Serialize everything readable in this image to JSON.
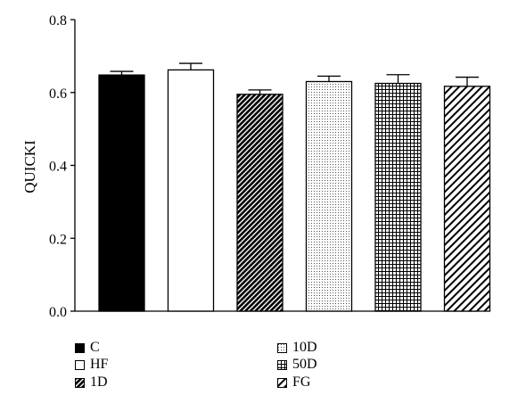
{
  "chart_data": {
    "type": "bar",
    "title": "",
    "xlabel": "",
    "ylabel": "QUICKI",
    "ylim": [
      0,
      0.8
    ],
    "yticks": [
      "0.0",
      "0.2",
      "0.4",
      "0.6",
      "0.8"
    ],
    "ytick_values": [
      0,
      0.2,
      0.4,
      0.6,
      0.8
    ],
    "categories": [
      "C",
      "HF",
      "1D",
      "10D",
      "50D",
      "FG"
    ],
    "values": [
      0.648,
      0.662,
      0.595,
      0.63,
      0.625,
      0.617
    ],
    "errors": [
      0.01,
      0.018,
      0.012,
      0.015,
      0.024,
      0.025
    ],
    "patterns": [
      "solid-black",
      "white",
      "dense-diagonal",
      "dots",
      "grid",
      "diagonal"
    ],
    "legend_placement": "bottom",
    "grid": false
  },
  "legend": {
    "items": [
      {
        "label": "C",
        "pattern": "solid-black"
      },
      {
        "label": "HF",
        "pattern": "white"
      },
      {
        "label": "1D",
        "pattern": "dense-diagonal"
      },
      {
        "label": "10D",
        "pattern": "dots"
      },
      {
        "label": "50D",
        "pattern": "grid"
      },
      {
        "label": "FG",
        "pattern": "diagonal"
      }
    ]
  }
}
